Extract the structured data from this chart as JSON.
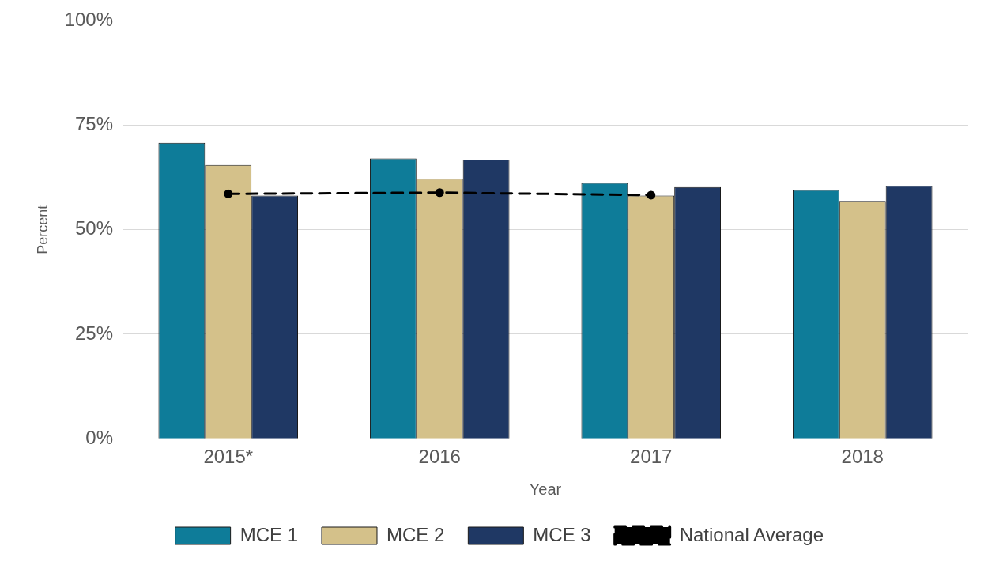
{
  "chart_data": {
    "type": "bar",
    "xlabel": "Year",
    "ylabel": "Percent",
    "categories": [
      "2015*",
      "2016",
      "2017",
      "2018"
    ],
    "series": [
      {
        "name": "MCE 1",
        "color": "#0e7c99",
        "values": [
          70.8,
          67.1,
          61.2,
          59.5
        ]
      },
      {
        "name": "MCE 2",
        "color": "#d4c18a",
        "values": [
          65.5,
          62.2,
          58.2,
          56.9
        ]
      },
      {
        "name": "MCE 3",
        "color": "#1f3864",
        "values": [
          58.2,
          66.8,
          60.2,
          60.5
        ]
      },
      {
        "name": "National Average",
        "type": "line",
        "color": "#000000",
        "line_style": "dashed",
        "marker": "circle",
        "values": [
          58.6,
          58.9,
          58.3,
          null
        ]
      }
    ],
    "ylim": [
      0,
      100
    ],
    "yticks": [
      {
        "value": 0,
        "label": "0%"
      },
      {
        "value": 25,
        "label": "25%"
      },
      {
        "value": 50,
        "label": "50%"
      },
      {
        "value": 75,
        "label": "75%"
      },
      {
        "value": 100,
        "label": "100%"
      }
    ],
    "grid": "y",
    "legend": "bottom"
  }
}
